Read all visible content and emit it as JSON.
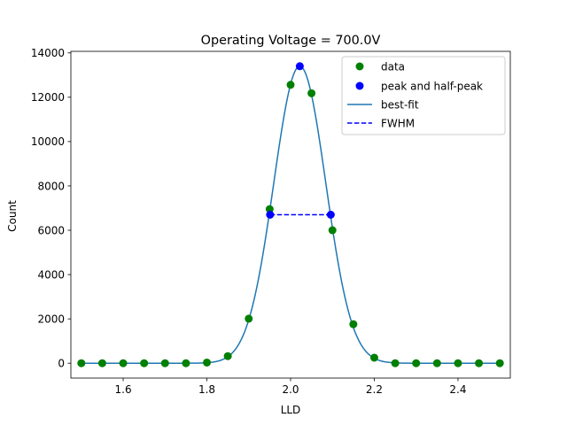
{
  "chart_data": {
    "type": "scatter",
    "title": "Operating Voltage = 700.0V",
    "xlabel": "LLD",
    "ylabel": "Count",
    "xlim": [
      1.475,
      2.525
    ],
    "ylim": [
      -670,
      14070
    ],
    "xticks": [
      1.6,
      1.8,
      2.0,
      2.2,
      2.4
    ],
    "xtick_labels": [
      "1.6",
      "1.8",
      "2.0",
      "2.2",
      "2.4"
    ],
    "yticks": [
      0,
      2000,
      4000,
      6000,
      8000,
      10000,
      12000,
      14000
    ],
    "ytick_labels": [
      "0",
      "2000",
      "4000",
      "6000",
      "8000",
      "10000",
      "12000",
      "14000"
    ],
    "grid": false,
    "legend_position": "top-right",
    "series": [
      {
        "name": "data",
        "kind": "scatter",
        "color": "#008000",
        "x": [
          1.5,
          1.55,
          1.6,
          1.65,
          1.7,
          1.75,
          1.8,
          1.85,
          1.9,
          1.95,
          2.0,
          2.05,
          2.1,
          2.15,
          2.2,
          2.25,
          2.3,
          2.35,
          2.4,
          2.45,
          2.5
        ],
        "y": [
          0,
          0,
          0,
          0,
          0,
          0,
          30,
          320,
          2010,
          6950,
          12560,
          12180,
          6000,
          1760,
          250,
          0,
          0,
          0,
          0,
          0,
          0
        ]
      },
      {
        "name": "peak and half-peak",
        "kind": "scatter",
        "color": "#0000ff",
        "x": [
          2.022,
          1.951,
          2.096
        ],
        "y": [
          13400,
          6700,
          6700
        ]
      },
      {
        "name": "best-fit",
        "kind": "line",
        "color": "#1f77b4",
        "model": "gaussian",
        "amplitude": 13400,
        "mean": 2.022,
        "sigma": 0.0622
      },
      {
        "name": "FWHM",
        "kind": "dashed-line",
        "color": "#0000ff",
        "x": [
          1.951,
          2.096
        ],
        "y": [
          6700,
          6700
        ]
      }
    ]
  }
}
